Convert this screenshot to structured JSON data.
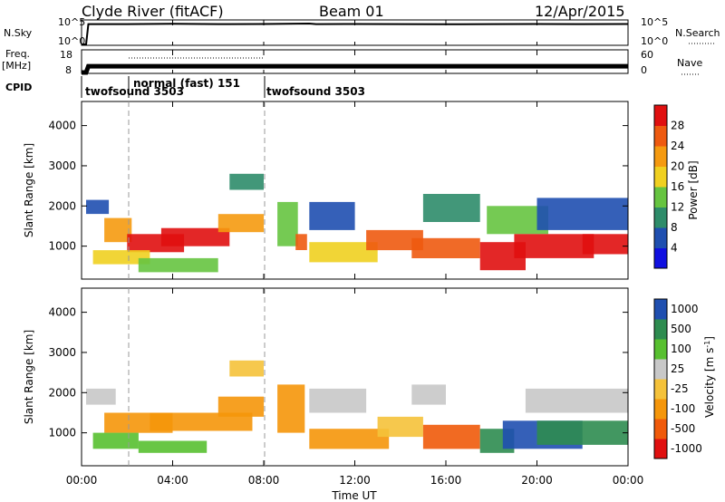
{
  "header": {
    "station": "Clyde River (fitACF)",
    "beam": "Beam 01",
    "date": "12/Apr/2015"
  },
  "nsky_panel": {
    "left_label": "N.Sky",
    "right_label": "N.Search",
    "ytick_top": "10^5",
    "ytick_bottom": "10^0",
    "right_ytick_top": "10^5",
    "right_ytick_bottom": "10^0"
  },
  "freq_panel": {
    "left_label_1": "Freq.",
    "left_label_2": "[MHz]",
    "right_label": "Nave",
    "yticks": [
      "18",
      "8"
    ],
    "right_yticks": [
      "60",
      "0"
    ]
  },
  "cpid": {
    "label": "CPID",
    "segments": [
      {
        "start_h": 0,
        "end_h": 2,
        "text": "twofsound 3503"
      },
      {
        "start_h": 2,
        "end_h": 8,
        "text": "normal (fast) 151"
      },
      {
        "start_h": 8,
        "end_h": 24,
        "text": "twofsound 3503"
      }
    ]
  },
  "x_axis": {
    "label": "Time UT",
    "ticks": [
      "00:00",
      "04:00",
      "08:00",
      "12:00",
      "16:00",
      "20:00",
      "00:00"
    ]
  },
  "colors": {
    "power": [
      "#1010e0",
      "#1f4fb0",
      "#2e8c6a",
      "#66c440",
      "#f0d020",
      "#f59a10",
      "#ee5a10",
      "#e01010"
    ],
    "velocity": [
      "#e01010",
      "#f05a0a",
      "#f5960a",
      "#f5c23a",
      "#c8c8c8",
      "#58c030",
      "#2e8c50",
      "#1f4fb0"
    ]
  },
  "chart_data": [
    {
      "type": "line",
      "title": "N.Sky",
      "x": [
        0,
        0.2,
        0.3,
        2,
        4,
        6,
        8,
        10,
        10.3,
        12,
        14,
        16,
        18,
        20,
        22,
        24
      ],
      "series": [
        {
          "name": "N.Sky",
          "values": [
            1,
            1,
            30000,
            30000,
            35000,
            30000,
            32000,
            40000,
            30000,
            32000,
            30000,
            28000,
            30000,
            32000,
            30000,
            32000
          ]
        }
      ],
      "ylim": [
        1,
        100000
      ]
    },
    {
      "type": "line",
      "title": "Freq.",
      "x": [
        0,
        0.2,
        0.3,
        2,
        2.01,
        8,
        8.01,
        24
      ],
      "series": [
        {
          "name": "Freq.",
          "values": [
            8,
            8,
            11,
            11,
            11,
            11,
            11,
            11
          ]
        }
      ],
      "ylim": [
        8,
        18
      ]
    },
    {
      "type": "heatmap",
      "ylabel": "Slant Range [km]",
      "xlabel": "Time UT",
      "colorbar_label": "Power [dB]",
      "colorbar_ticks": [
        "4",
        "8",
        "12",
        "16",
        "20",
        "24",
        "28"
      ],
      "xlim": [
        0,
        24
      ],
      "ylim": [
        180,
        4600
      ],
      "yticks": [
        1000,
        2000,
        3000,
        4000
      ],
      "cells": [
        [
          0.2,
          1.2,
          1800,
          2150,
          1
        ],
        [
          1.0,
          2.2,
          1100,
          1700,
          5
        ],
        [
          2.0,
          4.5,
          850,
          1300,
          7
        ],
        [
          3.5,
          6.5,
          1000,
          1450,
          7
        ],
        [
          6.0,
          8.0,
          1350,
          1800,
          5
        ],
        [
          0.5,
          3.0,
          550,
          900,
          4
        ],
        [
          2.5,
          6.0,
          350,
          700,
          3
        ],
        [
          6.5,
          8.0,
          2400,
          2800,
          2
        ],
        [
          8.6,
          9.5,
          1000,
          2100,
          3
        ],
        [
          9.4,
          9.9,
          900,
          1300,
          6
        ],
        [
          10.0,
          12.0,
          1400,
          2100,
          1
        ],
        [
          10.0,
          13.0,
          600,
          1100,
          4
        ],
        [
          12.5,
          15.0,
          900,
          1400,
          6
        ],
        [
          15.0,
          17.5,
          1600,
          2300,
          2
        ],
        [
          14.5,
          17.5,
          700,
          1200,
          6
        ],
        [
          17.5,
          19.5,
          400,
          1100,
          7
        ],
        [
          17.8,
          20.5,
          1300,
          2000,
          3
        ],
        [
          19.0,
          22.5,
          700,
          1300,
          7
        ],
        [
          22.0,
          24.0,
          800,
          1300,
          7
        ],
        [
          20.0,
          24.0,
          1400,
          2200,
          1
        ]
      ]
    },
    {
      "type": "heatmap",
      "ylabel": "Slant Range [km]",
      "xlabel": "Time UT",
      "colorbar_label": "Velocity [m s^-1]",
      "colorbar_ticks": [
        "1000",
        "500",
        "100",
        "25",
        "-25",
        "-100",
        "-500",
        "-1000"
      ],
      "xlim": [
        0,
        24
      ],
      "ylim": [
        180,
        4600
      ],
      "yticks": [
        1000,
        2000,
        3000,
        4000
      ],
      "cells": [
        [
          0.2,
          1.5,
          1700,
          2100,
          4
        ],
        [
          1.0,
          4.0,
          1000,
          1500,
          2
        ],
        [
          0.5,
          2.5,
          600,
          1000,
          5
        ],
        [
          3.0,
          7.5,
          1050,
          1500,
          2
        ],
        [
          6.0,
          8.0,
          1400,
          1900,
          2
        ],
        [
          2.5,
          5.5,
          500,
          800,
          5
        ],
        [
          6.5,
          8.0,
          2400,
          2800,
          3
        ],
        [
          8.6,
          9.8,
          1000,
          2200,
          2
        ],
        [
          10.0,
          12.5,
          1500,
          2100,
          4
        ],
        [
          10.0,
          13.5,
          600,
          1100,
          2
        ],
        [
          13.0,
          15.0,
          900,
          1400,
          3
        ],
        [
          14.5,
          16.0,
          1700,
          2200,
          4
        ],
        [
          15.0,
          17.5,
          600,
          1200,
          1
        ],
        [
          17.5,
          19.0,
          500,
          1100,
          6
        ],
        [
          18.5,
          22.0,
          600,
          1300,
          7
        ],
        [
          20.0,
          24.0,
          700,
          1300,
          6
        ],
        [
          19.5,
          24.0,
          1500,
          2100,
          4
        ]
      ]
    }
  ]
}
